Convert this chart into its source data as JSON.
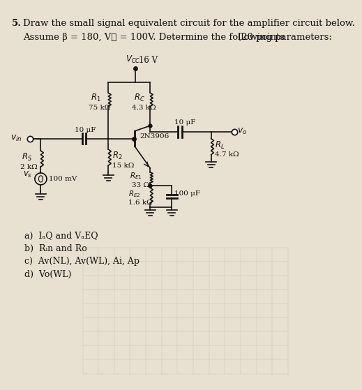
{
  "bg_color": "#e8e0d0",
  "title_number": "5.",
  "line1": "Draw the small signal equivalent circuit for the amplifier circuit below.",
  "line2": "Assume β = 180, V⁁ = 100V. Determine the following parameters:",
  "points": "(20 points",
  "vcc_label": "Vcc",
  "vcc_value": "16 V",
  "transistor": "2N3906",
  "R1": "75 kΩ",
  "R2": "15 kΩ",
  "RC": "4.3 kΩ",
  "RE1": "33 Ω",
  "RE2": "1.6 kΩ",
  "RS": "2 kΩ",
  "RL": "4.7 kΩ",
  "C1": "10 μF",
  "C2": "10 μF",
  "C3": "100 μF",
  "VS": "100 mV",
  "sub_items": [
    "a)  IₐQ and VₐEQ",
    "b)  Rᵢn and Ro",
    "c)  Av(NL), Av(WL), Ai, Ap",
    "d)  Vo(WL)"
  ],
  "text_color": "#111111",
  "line_color": "#111111",
  "grid_color": "#b8b0a0",
  "font_size_header": 9.5,
  "font_size_label": 8.0,
  "font_size_value": 7.5,
  "lw": 1.2
}
